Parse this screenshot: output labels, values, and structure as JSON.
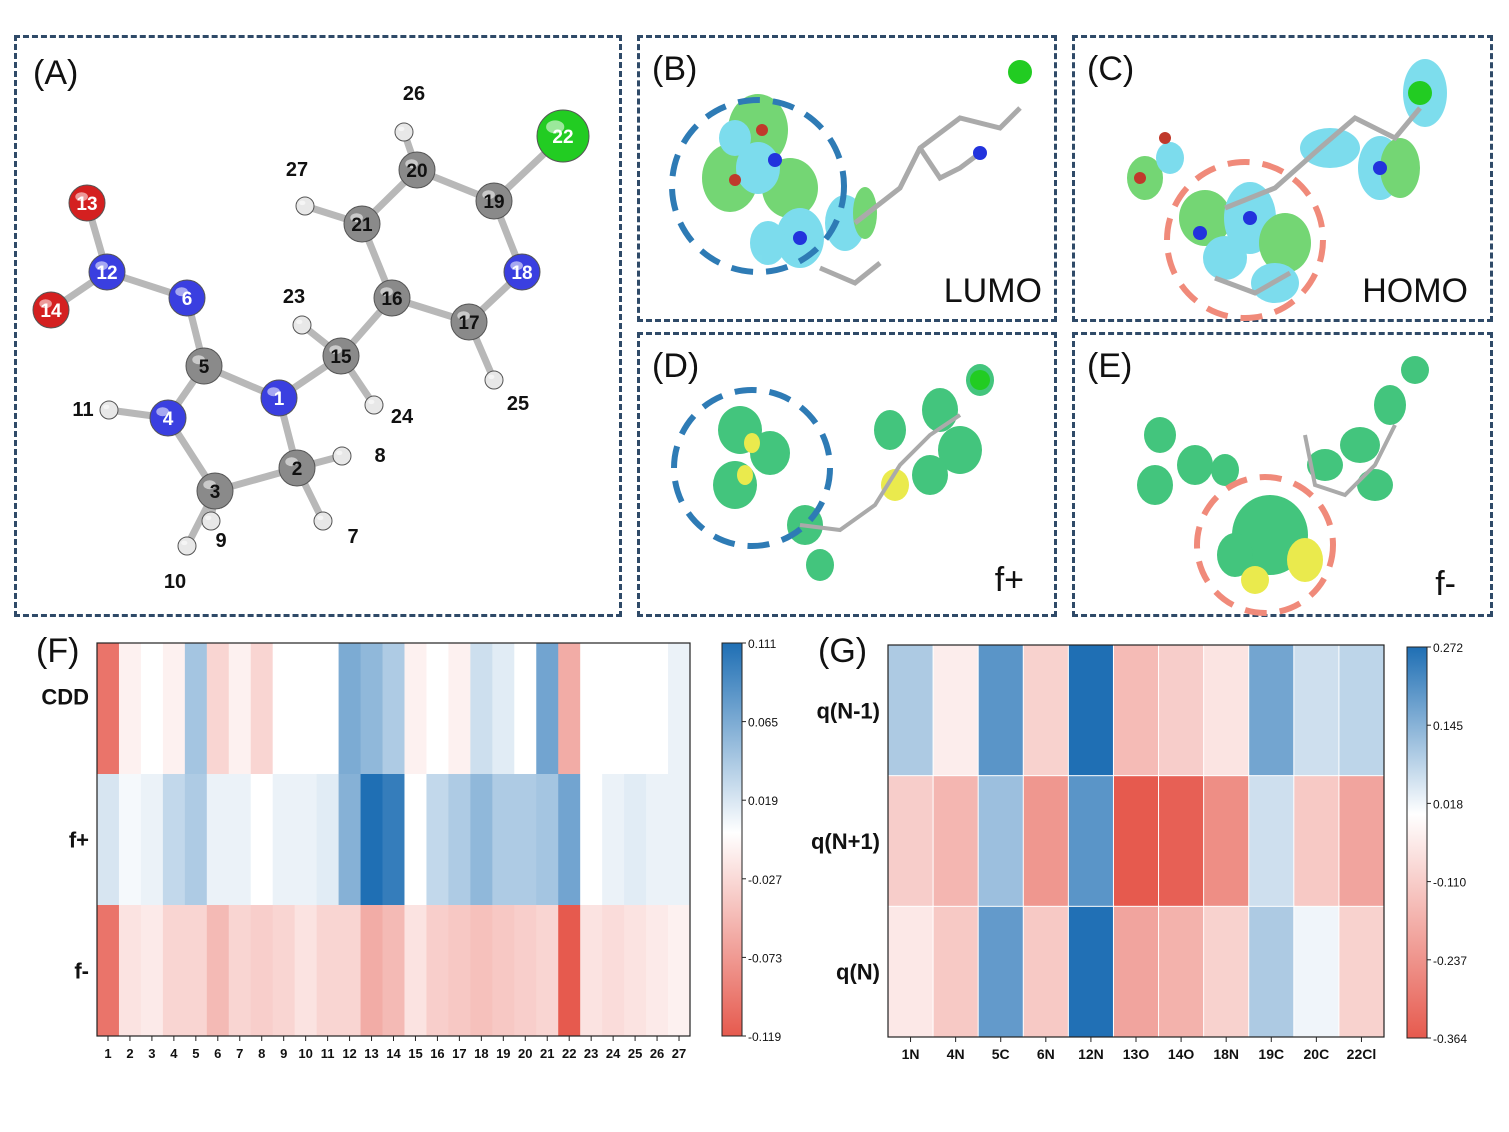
{
  "panels": {
    "A": {
      "label": "(A)"
    },
    "B": {
      "label": "(B)",
      "corner": "LUMO"
    },
    "C": {
      "label": "(C)",
      "corner": "HOMO"
    },
    "D": {
      "label": "(D)",
      "corner": "f+"
    },
    "E": {
      "label": "(E)",
      "corner": "f-"
    },
    "F": {
      "label": "(F)"
    },
    "G": {
      "label": "(G)"
    }
  },
  "molecule": {
    "atoms": [
      {
        "id": "1",
        "element": "N"
      },
      {
        "id": "2",
        "element": "C"
      },
      {
        "id": "3",
        "element": "C"
      },
      {
        "id": "4",
        "element": "N"
      },
      {
        "id": "5",
        "element": "C"
      },
      {
        "id": "6",
        "element": "N"
      },
      {
        "id": "7",
        "element": "H"
      },
      {
        "id": "8",
        "element": "H"
      },
      {
        "id": "9",
        "element": "H"
      },
      {
        "id": "10",
        "element": "H"
      },
      {
        "id": "11",
        "element": "H"
      },
      {
        "id": "12",
        "element": "N"
      },
      {
        "id": "13",
        "element": "O"
      },
      {
        "id": "14",
        "element": "O"
      },
      {
        "id": "15",
        "element": "C"
      },
      {
        "id": "16",
        "element": "C"
      },
      {
        "id": "17",
        "element": "C"
      },
      {
        "id": "18",
        "element": "N"
      },
      {
        "id": "19",
        "element": "C"
      },
      {
        "id": "20",
        "element": "C"
      },
      {
        "id": "21",
        "element": "C"
      },
      {
        "id": "22",
        "element": "Cl"
      },
      {
        "id": "23",
        "element": "H"
      },
      {
        "id": "24",
        "element": "H"
      },
      {
        "id": "25",
        "element": "H"
      },
      {
        "id": "26",
        "element": "H"
      },
      {
        "id": "27",
        "element": "H"
      }
    ],
    "colors": {
      "N": "#3a3fe0",
      "C": "#8a8a8a",
      "O": "#d42020",
      "Cl": "#22cc22",
      "H": "#e8e8e8"
    }
  },
  "chart_data": [
    {
      "type": "heatmap",
      "panel": "F",
      "rows": [
        "CDD",
        "f+",
        "f-"
      ],
      "columns": [
        "1",
        "2",
        "3",
        "4",
        "5",
        "6",
        "7",
        "8",
        "9",
        "10",
        "11",
        "12",
        "13",
        "14",
        "15",
        "16",
        "17",
        "18",
        "19",
        "20",
        "21",
        "22",
        "23",
        "24",
        "25",
        "26",
        "27"
      ],
      "values": [
        [
          -0.1,
          -0.01,
          0.0,
          -0.01,
          0.045,
          -0.03,
          -0.01,
          -0.03,
          0.0,
          0.0,
          0.0,
          0.065,
          0.055,
          0.04,
          -0.01,
          0.0,
          -0.01,
          0.025,
          0.015,
          0.0,
          0.07,
          -0.06,
          0.0,
          0.0,
          0.0,
          0.0,
          0.01
        ],
        [
          0.02,
          0.005,
          0.01,
          0.03,
          0.04,
          0.01,
          0.01,
          0.0,
          0.01,
          0.01,
          0.015,
          0.06,
          0.111,
          0.1,
          0.0,
          0.03,
          0.04,
          0.055,
          0.04,
          0.04,
          0.045,
          0.07,
          0.0,
          0.01,
          0.015,
          0.01,
          0.01
        ],
        [
          -0.1,
          -0.02,
          -0.015,
          -0.03,
          -0.03,
          -0.05,
          -0.03,
          -0.035,
          -0.03,
          -0.02,
          -0.03,
          -0.03,
          -0.06,
          -0.05,
          -0.02,
          -0.035,
          -0.04,
          -0.045,
          -0.04,
          -0.035,
          -0.03,
          -0.119,
          -0.02,
          -0.025,
          -0.02,
          -0.015,
          -0.01
        ]
      ],
      "colorbar": {
        "ticks": [
          "0.111",
          "0.065",
          "0.019",
          "-0.027",
          "-0.073",
          "-0.119"
        ],
        "min": -0.119,
        "max": 0.111
      },
      "colors": {
        "low": "#e65a4e",
        "mid": "#ffffff",
        "high": "#1f6fb4"
      }
    },
    {
      "type": "heatmap",
      "panel": "G",
      "rows": [
        "q(N-1)",
        "q(N+1)",
        "q(N)"
      ],
      "columns": [
        "1N",
        "4N",
        "5C",
        "6N",
        "12N",
        "13O",
        "14O",
        "18N",
        "19C",
        "20C",
        "22Cl"
      ],
      "values": [
        [
          0.1,
          -0.04,
          0.2,
          -0.1,
          0.272,
          -0.15,
          -0.11,
          -0.06,
          0.17,
          0.06,
          0.08
        ],
        [
          -0.11,
          -0.16,
          0.12,
          -0.23,
          0.2,
          -0.364,
          -0.35,
          -0.25,
          0.06,
          -0.12,
          -0.2
        ],
        [
          -0.05,
          -0.12,
          0.19,
          -0.12,
          0.27,
          -0.2,
          -0.17,
          -0.1,
          0.1,
          0.018,
          -0.1
        ]
      ],
      "colorbar": {
        "ticks": [
          "0.272",
          "0.145",
          "0.018",
          "-0.110",
          "-0.237",
          "-0.364"
        ],
        "min": -0.364,
        "max": 0.272
      },
      "colors": {
        "low": "#e65a4e",
        "mid": "#ffffff",
        "high": "#1f6fb4"
      }
    }
  ]
}
